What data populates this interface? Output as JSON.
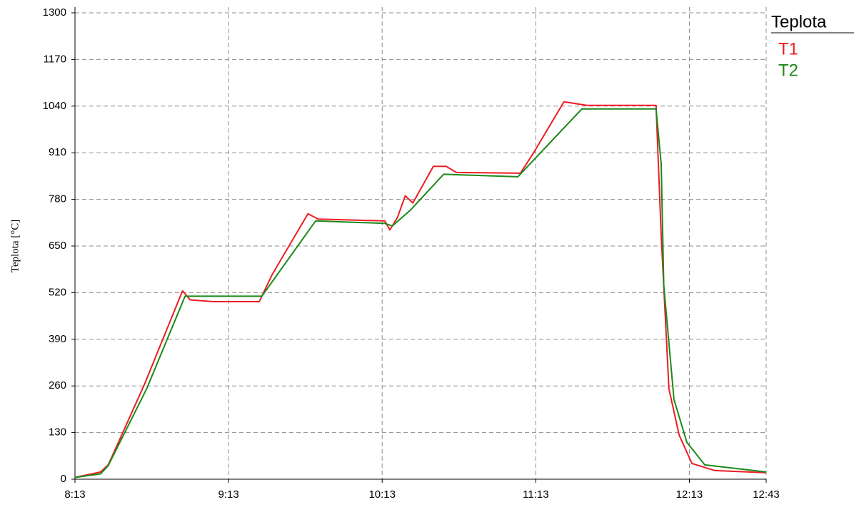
{
  "chart_data": {
    "type": "line",
    "y_label": "Teplota [°C]",
    "legend_title": "Teplota",
    "legend": "top-right",
    "grid": true,
    "xlim": [
      "8:13",
      "12:43"
    ],
    "xticks": [
      "8:13",
      "9:13",
      "10:13",
      "11:13",
      "12:13",
      "12:43"
    ],
    "ylim": [
      0,
      1300
    ],
    "yticks": [
      0,
      130,
      260,
      390,
      520,
      650,
      780,
      910,
      1040,
      1170,
      1300
    ],
    "series": [
      {
        "name": "T1",
        "color": "#ee1c24",
        "x": [
          "8:13",
          "8:23",
          "8:26",
          "8:40",
          "8:55",
          "8:58",
          "9:07",
          "9:25",
          "9:30",
          "9:44",
          "9:48",
          "10:14",
          "10:16",
          "10:19",
          "10:22",
          "10:25",
          "10:33",
          "10:38",
          "10:42",
          "11:07",
          "11:12",
          "11:24",
          "11:33",
          "12:00",
          "12:02",
          "12:05",
          "12:09",
          "12:14",
          "12:23",
          "12:43"
        ],
        "values": [
          5,
          20,
          40,
          262,
          525,
          500,
          495,
          495,
          570,
          740,
          725,
          720,
          695,
          730,
          790,
          770,
          872,
          872,
          855,
          853,
          908,
          1052,
          1042,
          1042,
          680,
          252,
          123,
          44,
          24,
          18
        ]
      },
      {
        "name": "T2",
        "color": "#1a8a1a",
        "x": [
          "8:13",
          "8:23",
          "8:26",
          "8:41",
          "8:56",
          "8:59",
          "9:26",
          "9:47",
          "10:14",
          "10:17",
          "10:24",
          "10:37",
          "11:06",
          "11:31",
          "12:00",
          "12:02",
          "12:03",
          "12:07",
          "12:12",
          "12:19",
          "12:43"
        ],
        "values": [
          5,
          15,
          38,
          252,
          510,
          510,
          510,
          720,
          713,
          706,
          750,
          850,
          843,
          1032,
          1032,
          878,
          540,
          222,
          103,
          40,
          20
        ]
      }
    ]
  }
}
